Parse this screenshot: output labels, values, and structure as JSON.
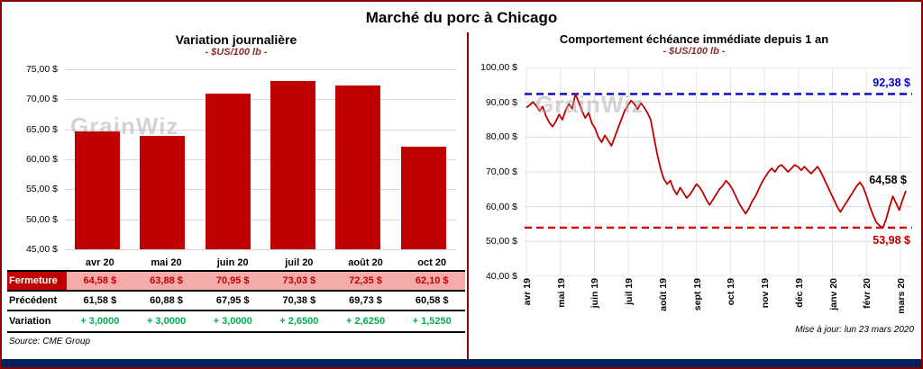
{
  "page": {
    "title": "Marché du porc à Chicago",
    "watermark": "GrainWiz",
    "source": "Source: CME Group",
    "updated": "Mise à jour: lun 23 mars 2020",
    "colors": {
      "accent_red": "#C00000",
      "border_red": "#8B0000",
      "bottom_bar_blue": "#002060",
      "variation_green": "#00B050",
      "high_line_blue": "#0000CC",
      "fermeture_row_pink": "#F6ABAB"
    }
  },
  "chart_data": [
    {
      "type": "bar",
      "title": "Variation journalière",
      "subtitle": "- $US/100 lb -",
      "categories": [
        "avr 20",
        "mai 20",
        "juin 20",
        "juil 20",
        "août 20",
        "oct 20"
      ],
      "values": [
        64.58,
        63.88,
        70.95,
        73.03,
        72.35,
        62.1
      ],
      "ylim": [
        45,
        75
      ],
      "ytick_labels": [
        "75,00 $",
        "70,00 $",
        "65,00 $",
        "60,00 $",
        "55,00 $",
        "50,00 $",
        "45,00 $"
      ],
      "bar_color": "#C00000",
      "grid": true,
      "legend": "none"
    },
    {
      "type": "line",
      "title": "Comportement échéance immédiate depuis 1 an",
      "subtitle": "- $US/100 lb -",
      "x_labels": [
        "avr 19",
        "mai 19",
        "juin 19",
        "juil 19",
        "août 19",
        "sept 19",
        "oct 19",
        "nov 19",
        "déc 19",
        "janv 20",
        "févr 20",
        "mars 20"
      ],
      "values": [
        88.5,
        89.2,
        90.1,
        89.0,
        87.5,
        88.8,
        86.0,
        84.2,
        83.0,
        84.5,
        86.5,
        85.0,
        87.8,
        89.5,
        88.2,
        92.38,
        90.0,
        87.5,
        85.5,
        87.0,
        84.0,
        82.5,
        80.0,
        78.5,
        80.5,
        79.0,
        77.5,
        80.0,
        82.5,
        85.0,
        87.5,
        89.0,
        90.5,
        89.5,
        88.0,
        89.8,
        88.5,
        87.0,
        85.0,
        80.0,
        75.0,
        71.0,
        68.0,
        66.5,
        67.5,
        65.0,
        63.5,
        65.5,
        64.0,
        62.5,
        63.5,
        65.0,
        66.5,
        65.5,
        64.0,
        62.0,
        60.5,
        62.0,
        63.5,
        65.0,
        66.0,
        67.5,
        66.5,
        65.0,
        63.0,
        61.0,
        59.5,
        58.0,
        59.5,
        61.5,
        63.0,
        65.0,
        67.0,
        68.5,
        70.0,
        71.0,
        70.0,
        71.5,
        72.0,
        71.0,
        70.0,
        71.0,
        72.0,
        71.5,
        70.5,
        71.5,
        70.5,
        69.5,
        70.5,
        71.5,
        70.0,
        68.0,
        66.0,
        64.0,
        62.0,
        60.0,
        58.5,
        60.0,
        61.5,
        63.0,
        64.5,
        66.0,
        67.0,
        65.5,
        63.0,
        60.0,
        57.5,
        55.5,
        54.5,
        53.98,
        56.5,
        60.0,
        63.0,
        61.0,
        59.0,
        62.0,
        64.58
      ],
      "ylim": [
        40,
        100
      ],
      "ytick_labels": [
        "100,00 $",
        "90,00 $",
        "80,00 $",
        "70,00 $",
        "60,00 $",
        "50,00 $",
        "40,00 $"
      ],
      "line_color": "#C00000",
      "high": {
        "value": 92.38,
        "label": "92,38 $"
      },
      "low": {
        "value": 53.98,
        "label": "53,98 $"
      },
      "current": {
        "value": 64.58,
        "label": "64,58 $"
      },
      "grid": true,
      "legend": "none"
    }
  ],
  "table": {
    "columns": [
      "avr 20",
      "mai 20",
      "juin 20",
      "juil 20",
      "août 20",
      "oct 20"
    ],
    "rows": [
      {
        "label": "Fermeture",
        "values": [
          "64,58 $",
          "63,88 $",
          "70,95 $",
          "73,03 $",
          "72,35 $",
          "62,10 $"
        ]
      },
      {
        "label": "Précédent",
        "values": [
          "61,58 $",
          "60,88 $",
          "67,95 $",
          "70,38 $",
          "69,73 $",
          "60,58 $"
        ]
      },
      {
        "label": "Variation",
        "values": [
          "+ 3,0000",
          "+ 3,0000",
          "+ 3,0000",
          "+ 2,6500",
          "+ 2,6250",
          "+ 1,5250"
        ]
      }
    ]
  }
}
